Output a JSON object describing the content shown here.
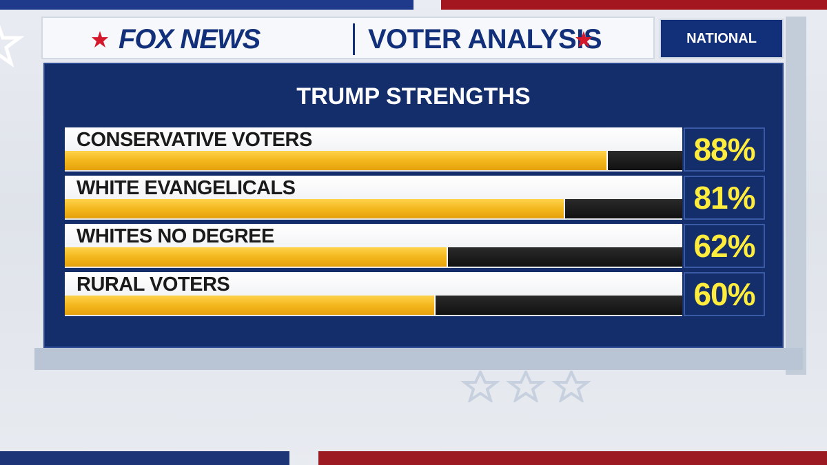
{
  "header": {
    "brand": "FOX NEWS",
    "title": "VOTER ANALYSIS",
    "region": "NATIONAL"
  },
  "colors": {
    "navy": "#142d6b",
    "brand_blue": "#12307a",
    "bar_fill": "#f2b51a",
    "bar_track": "#111111",
    "value_text": "#ffec3d",
    "star_red": "#d3192b"
  },
  "chart_data": {
    "type": "bar",
    "title": "TRUMP STRENGTHS",
    "xlabel": "",
    "ylabel": "",
    "ylim": [
      0,
      100
    ],
    "categories": [
      "CONSERVATIVE VOTERS",
      "WHITE EVANGELICALS",
      "WHITES NO DEGREE",
      "RURAL VOTERS"
    ],
    "values": [
      88,
      81,
      62,
      60
    ],
    "value_labels": [
      "88%",
      "81%",
      "62%",
      "60%"
    ]
  }
}
